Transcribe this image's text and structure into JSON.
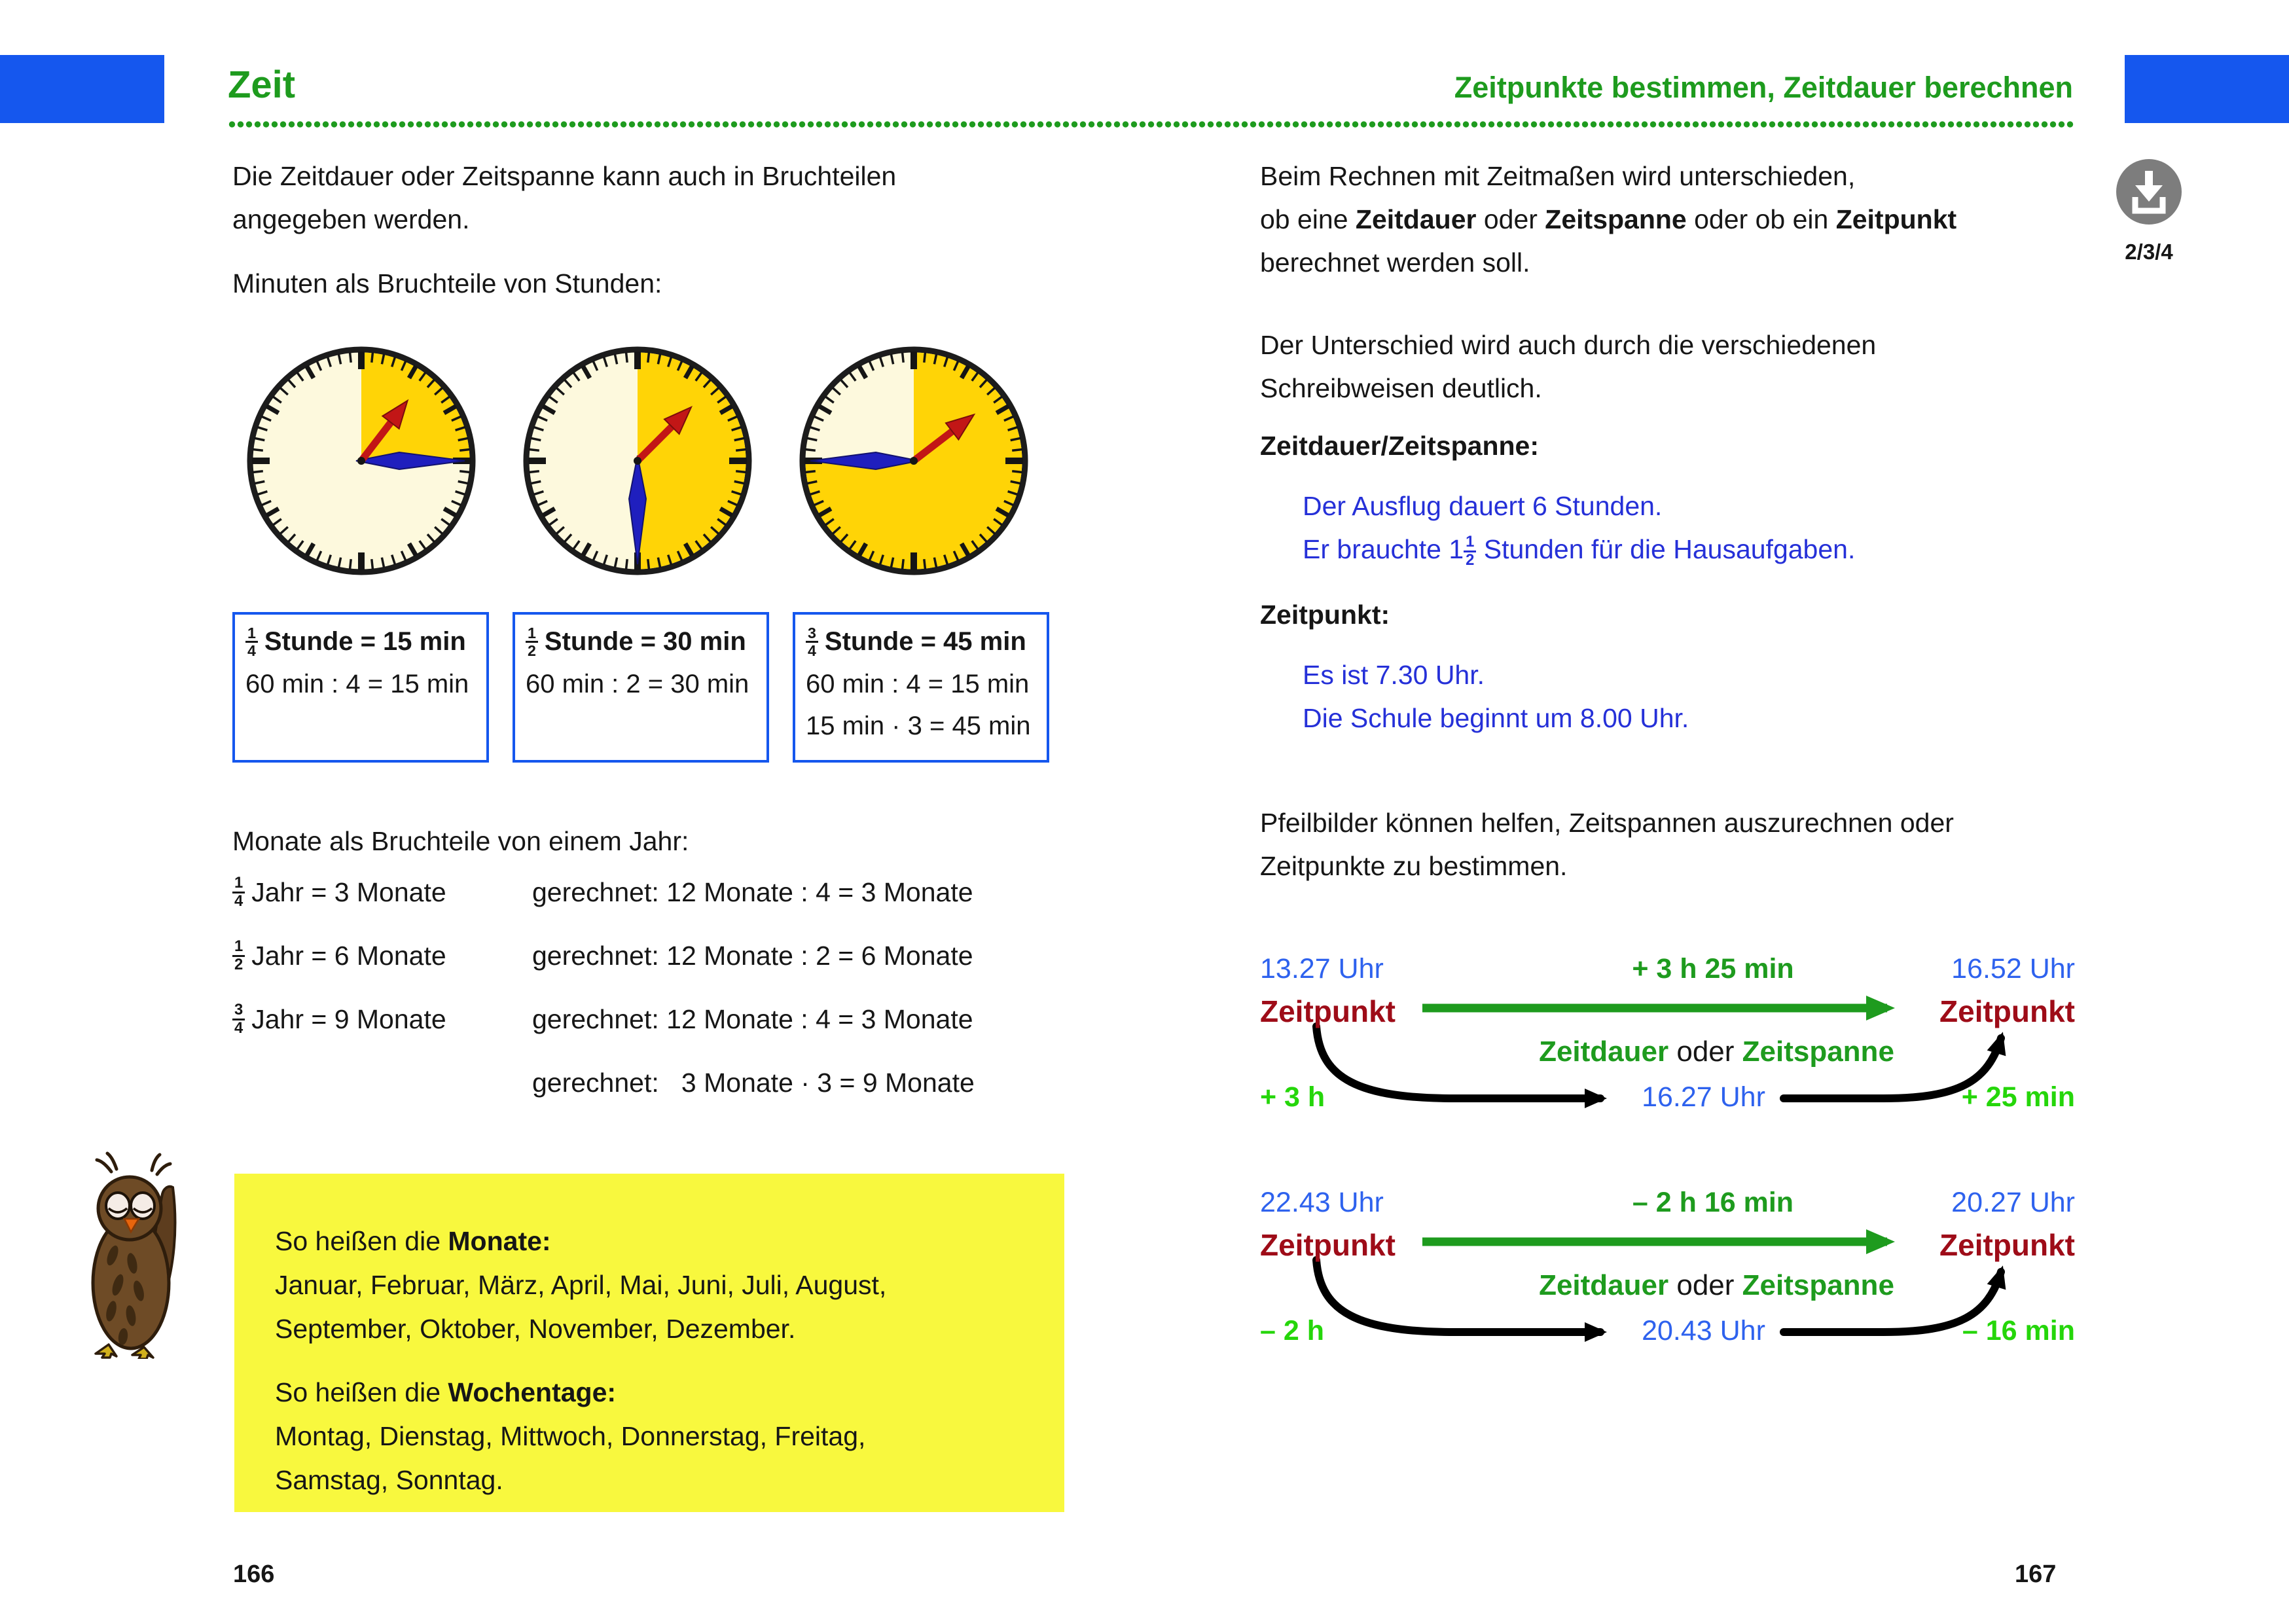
{
  "palette": {
    "accent_blue": "#1557ee",
    "time_blue": "#2e62ee",
    "example_blue": "#2530d8",
    "green": "#1e9b1e",
    "neon_green": "#25d60a",
    "dark_red": "#9e0c18",
    "clock_gold": "#ffd406",
    "clock_face": "#fdf9dd",
    "infobox_yellow": "#f8f83e"
  },
  "header": {
    "left_title": "Zeit",
    "right_title": "Zeitpunkte bestimmen, Zeitdauer berechnen"
  },
  "left_page": {
    "intro": "Die Zeitdauer oder Zeitspanne kann auch in Bruchteilen\nangegeben werden.",
    "minutes_heading": "Minuten als Bruchteile von Stunden:",
    "clocks": [
      {
        "icon": "clock-quarter",
        "minutes": 15
      },
      {
        "icon": "clock-half",
        "minutes": 30
      },
      {
        "icon": "clock-three-quarter",
        "minutes": 45
      }
    ],
    "boxes": [
      {
        "num": "1",
        "den": "4",
        "title": "Stunde = 15 min",
        "lines": [
          "60 min : 4 = 15 min"
        ]
      },
      {
        "num": "1",
        "den": "2",
        "title": "Stunde = 30 min",
        "lines": [
          "60 min : 2 = 30 min"
        ]
      },
      {
        "num": "3",
        "den": "4",
        "title": "Stunde = 45 min",
        "lines": [
          "60 min : 4 = 15 min",
          "15 min · 3 = 45 min"
        ]
      }
    ],
    "months_heading": "Monate als Bruchteile von einem Jahr:",
    "year_rows": [
      {
        "num": "1",
        "den": "4",
        "left": "Jahr = 3 Monate",
        "right": "gerechnet: 12 Monate : 4 = 3 Monate"
      },
      {
        "num": "1",
        "den": "2",
        "left": "Jahr = 6 Monate",
        "right": "gerechnet: 12 Monate : 2 = 6 Monate"
      },
      {
        "num": "3",
        "den": "4",
        "left": "Jahr = 9 Monate",
        "right": "gerechnet: 12 Monate : 4 = 3 Monate"
      },
      {
        "num": "",
        "den": "",
        "left": "",
        "right": "gerechnet:   3 Monate · 3 = 9 Monate"
      }
    ],
    "infobox": {
      "months_label": [
        {
          "t": "So heißen die "
        },
        {
          "t": "Monate:",
          "b": true
        }
      ],
      "months_text": "Januar, Februar, März, April, Mai, Juni, Juli, August,\nSeptember, Oktober, November, Dezember.",
      "weekdays_label": [
        {
          "t": "So heißen die "
        },
        {
          "t": "Wochentage:",
          "b": true
        }
      ],
      "weekdays_text": "Montag, Dienstag, Mittwoch, Donnerstag, Freitag,\nSamstag, Sonntag."
    },
    "page_number": "166"
  },
  "right_page": {
    "para1": [
      {
        "t": "Beim Rechnen mit Zeitmaßen wird unterschieden,\nob eine "
      },
      {
        "t": "Zeitdauer",
        "b": true
      },
      {
        "t": " oder "
      },
      {
        "t": "Zeitspanne",
        "b": true
      },
      {
        "t": " oder ob ein "
      },
      {
        "t": "Zeitpunkt",
        "b": true
      },
      {
        "t": "\nberechnet werden soll."
      }
    ],
    "para2": "Der Unterschied wird auch durch die verschiedenen\nSchreibweisen deutlich.",
    "duration_heading": "Zeitdauer/Zeitspanne:",
    "duration_examples": [
      {
        "t": "Der Ausflug dauert 6 Stunden.\nEr brauchte 1"
      },
      {
        "frac": [
          "1",
          "2"
        ]
      },
      {
        "t": " Stunden für die Hausaufgaben."
      }
    ],
    "point_heading": "Zeitpunkt:",
    "point_examples": "Es ist 7.30 Uhr.\nDie Schule beginnt um 8.00 Uhr.",
    "arrows_para": "Pfeilbilder können helfen, Zeitspannen auszurechnen oder\nZeitpunkte zu bestimmen.",
    "diagrams": [
      {
        "start_time": "13.27 Uhr",
        "delta": "+ 3 h 25 min",
        "end_time": "16.52 Uhr",
        "start_label": "Zeitpunkt",
        "end_label": "Zeitpunkt",
        "mid": [
          {
            "t": "Zeitdauer",
            "b": true,
            "c": "green"
          },
          {
            "t": " oder "
          },
          {
            "t": "Zeitspanne",
            "b": true,
            "c": "green"
          }
        ],
        "step1": "+ 3 h",
        "mid_time": "16.27 Uhr",
        "step2": "+ 25 min"
      },
      {
        "start_time": "22.43 Uhr",
        "delta": "– 2 h 16 min",
        "end_time": "20.27 Uhr",
        "start_label": "Zeitpunkt",
        "end_label": "Zeitpunkt",
        "mid": [
          {
            "t": "Zeitdauer",
            "b": true,
            "c": "green"
          },
          {
            "t": " oder "
          },
          {
            "t": "Zeitspanne",
            "b": true,
            "c": "green"
          }
        ],
        "step1": "– 2 h",
        "mid_time": "20.43 Uhr",
        "step2": "– 16 min"
      }
    ],
    "download_label": "2/3/4",
    "page_number": "167"
  }
}
